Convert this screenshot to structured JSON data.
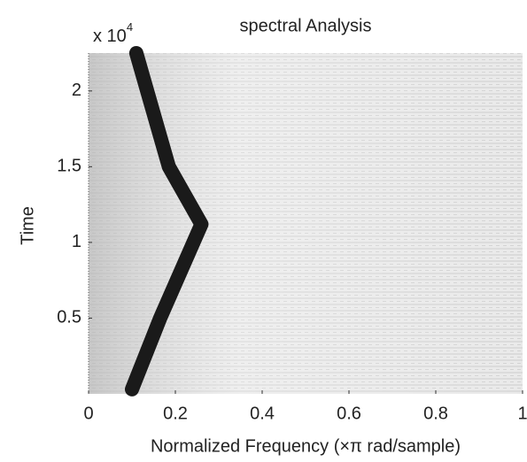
{
  "chart_data": {
    "type": "line",
    "title": "spectral Analysis",
    "x_label": "Normalized Frequency  (×π rad/sample)",
    "y_label": "Time",
    "y_multiplier": {
      "base": "x 10",
      "exponent": "4"
    },
    "xlim": [
      0,
      1
    ],
    "xticks": [
      0,
      0.2,
      0.4,
      0.6,
      0.8,
      1
    ],
    "ylim": [
      0,
      22500
    ],
    "yticks": [
      {
        "value": 5000,
        "label": "0.5"
      },
      {
        "value": 10000,
        "label": "1"
      },
      {
        "value": 15000,
        "label": "1.5"
      },
      {
        "value": 20000,
        "label": "2"
      }
    ],
    "series": [
      {
        "color": "#1a1a1a",
        "x": [
          0.1,
          0.165,
          0.26,
          0.185,
          0.11
        ],
        "values": [
          300,
          5000,
          11200,
          15000,
          22500
        ]
      }
    ]
  }
}
